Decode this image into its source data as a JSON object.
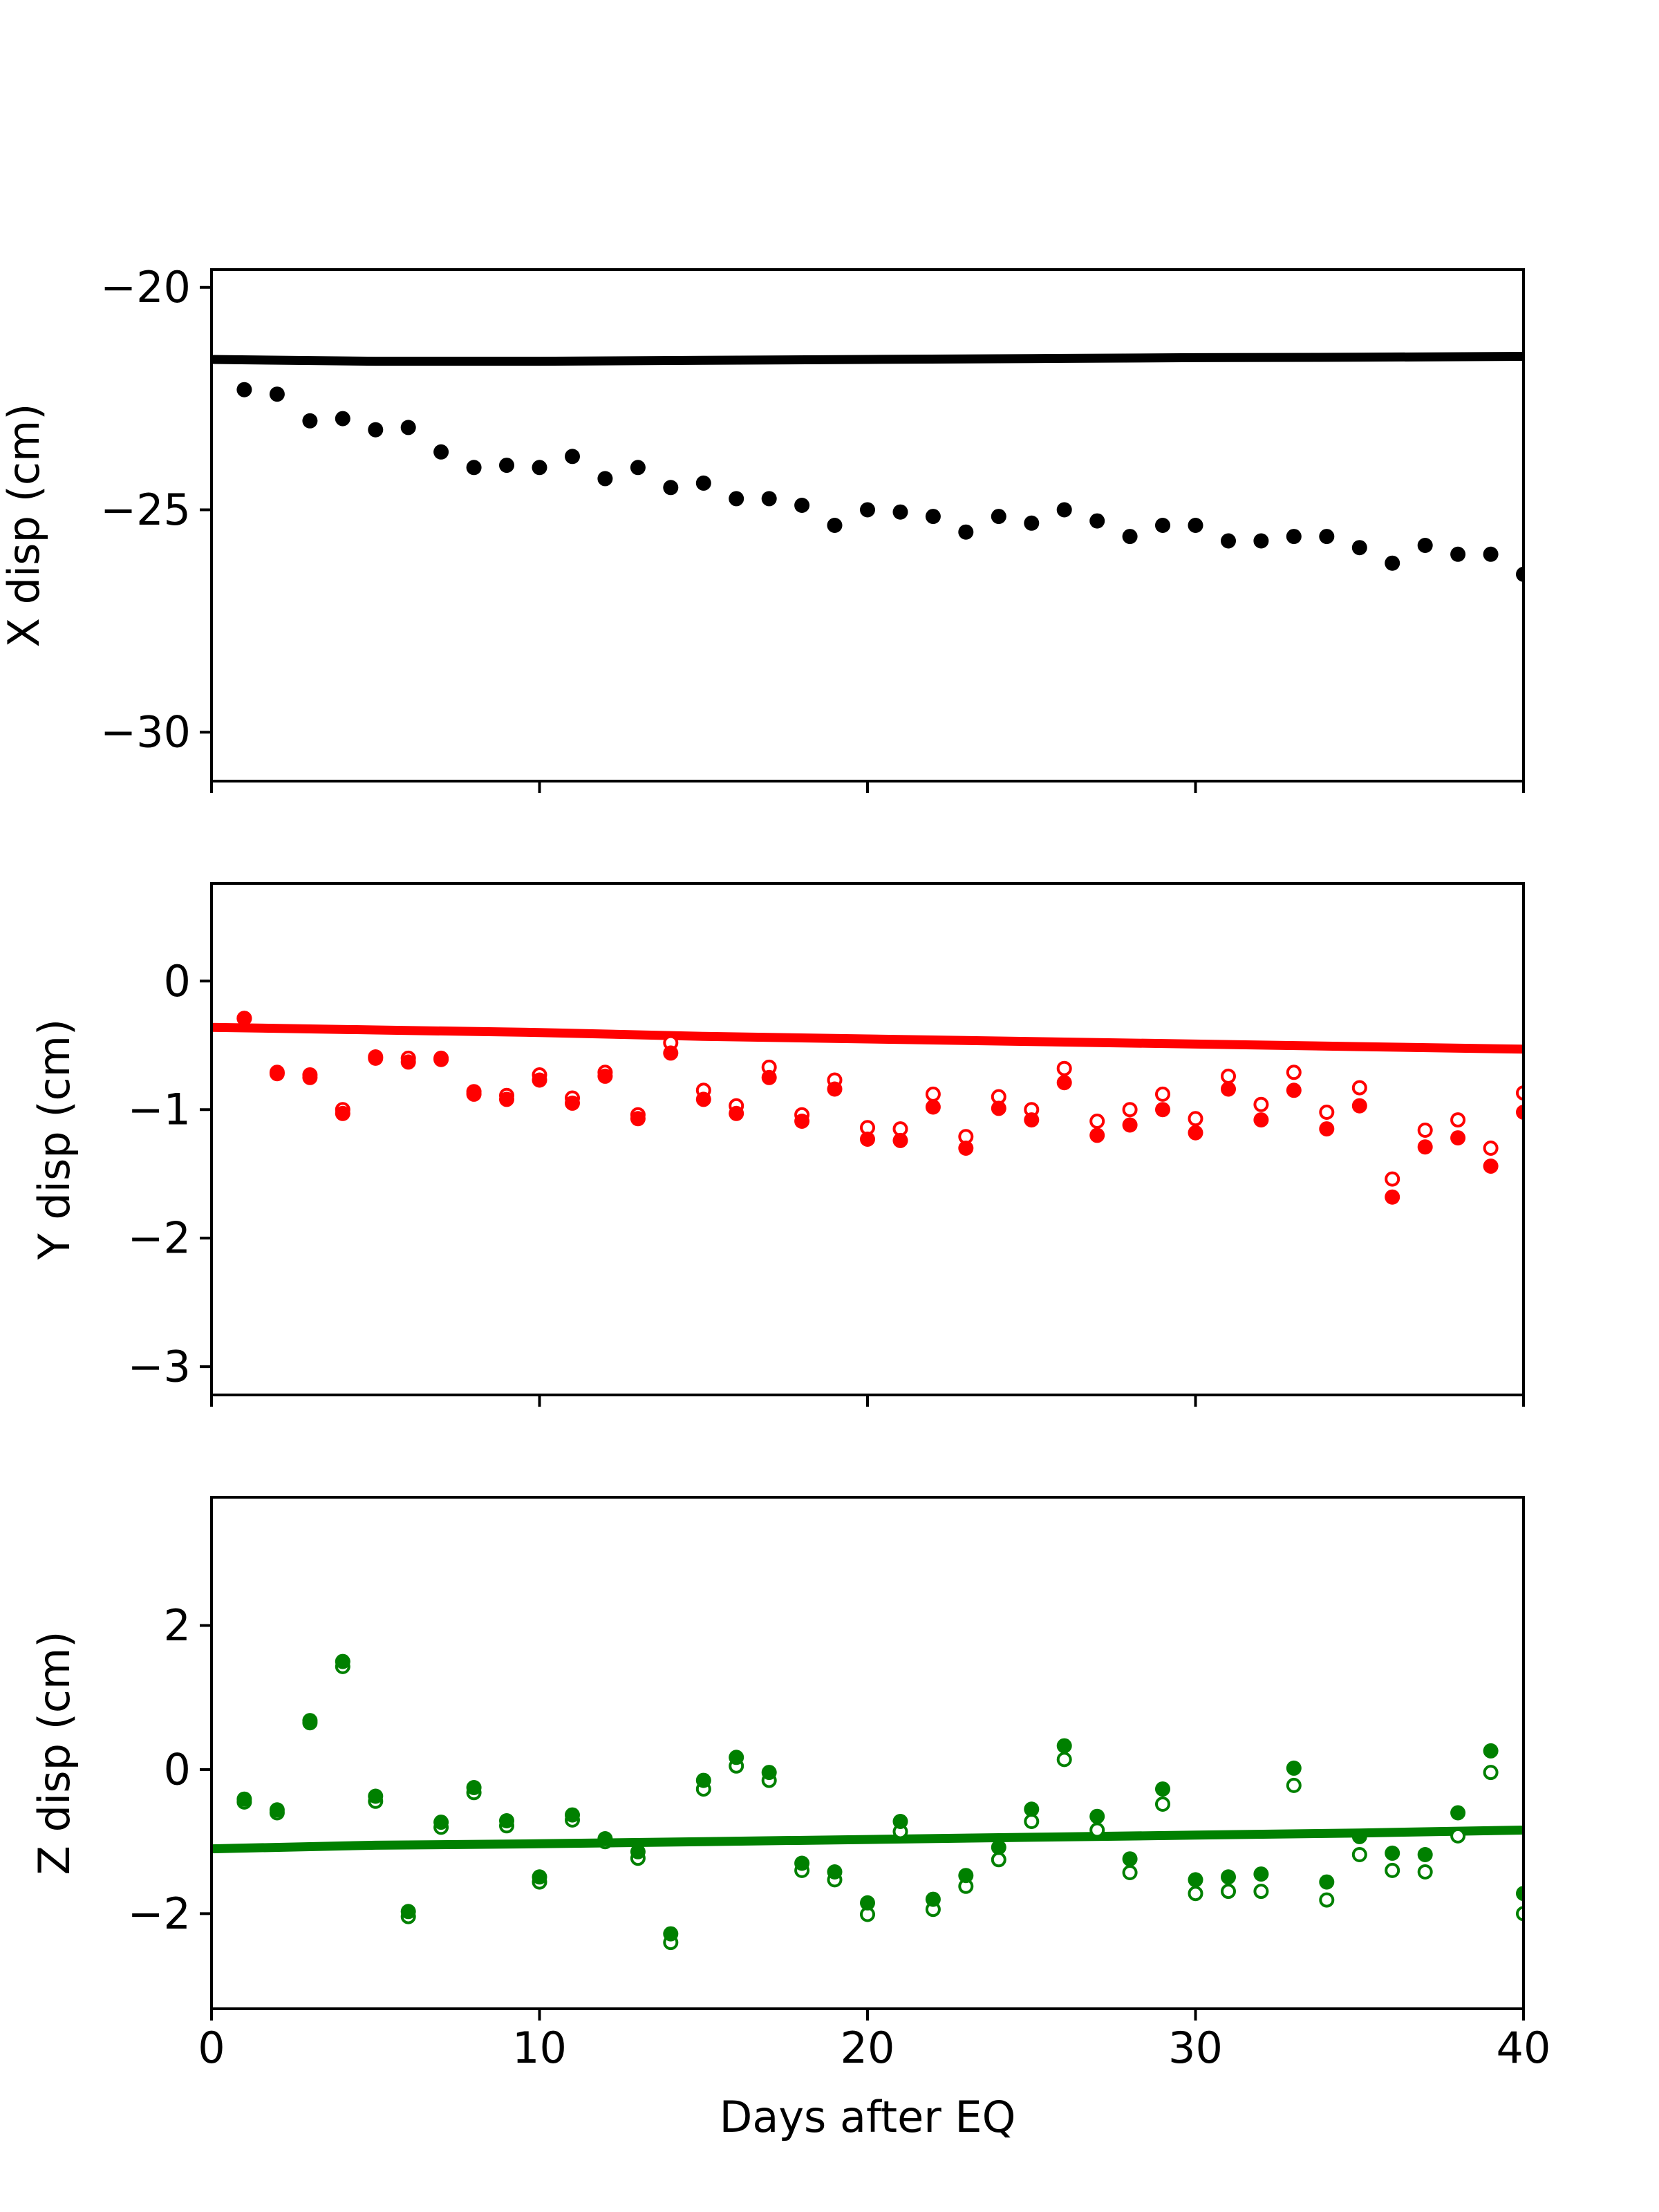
{
  "chart_data": [
    {
      "type": "scatter",
      "ylabel": "X disp (cm)",
      "xlim": [
        0,
        40
      ],
      "ylim": [
        -31.1,
        -19.6
      ],
      "yticks": [
        -20,
        -25,
        -30
      ],
      "ytick_labels": [
        "−20",
        "−25",
        "−30"
      ],
      "color": "#000000",
      "model": {
        "x": [
          0,
          5,
          10,
          15,
          20,
          25,
          30,
          35,
          40
        ],
        "values": [
          -21.62,
          -21.66,
          -21.66,
          -21.64,
          -21.62,
          -21.6,
          -21.58,
          -21.57,
          -21.55
        ]
      },
      "observed_filled": {
        "x": [
          1,
          2,
          3,
          4,
          5,
          6,
          7,
          8,
          9,
          10,
          11,
          12,
          13,
          14,
          15,
          16,
          17,
          18,
          19,
          20,
          21,
          22,
          23,
          24,
          25,
          26,
          27,
          28,
          29,
          30,
          31,
          32,
          33,
          34,
          35,
          36,
          37,
          38,
          39,
          40
        ],
        "values": [
          -22.3,
          -22.4,
          -23.0,
          -22.95,
          -23.2,
          -23.15,
          -23.7,
          -24.05,
          -24.0,
          -24.05,
          -23.8,
          -24.3,
          -24.05,
          -24.5,
          -24.4,
          -24.75,
          -24.75,
          -24.9,
          -25.35,
          -25.0,
          -25.05,
          -25.15,
          -25.5,
          -25.15,
          -25.3,
          -25.0,
          -25.25,
          -25.6,
          -25.35,
          -25.35,
          -25.7,
          -25.7,
          -25.6,
          -25.6,
          -25.85,
          -26.2,
          -25.8,
          -26.0,
          -26.0,
          -26.45
        ]
      },
      "observed_open": null
    },
    {
      "type": "scatter",
      "ylabel": "Y disp (cm)",
      "xlim": [
        0,
        40
      ],
      "ylim": [
        -3.22,
        0.76
      ],
      "yticks": [
        0,
        -1,
        -2,
        -3
      ],
      "ytick_labels": [
        "0",
        "−1",
        "−2",
        "−3"
      ],
      "color": "#ff0000",
      "model": {
        "x": [
          0,
          5,
          10,
          15,
          20,
          25,
          30,
          35,
          40
        ],
        "values": [
          -0.36,
          -0.38,
          -0.4,
          -0.43,
          -0.45,
          -0.47,
          -0.49,
          -0.51,
          -0.53
        ]
      },
      "observed_filled": {
        "x": [
          1,
          2,
          3,
          4,
          5,
          6,
          7,
          8,
          9,
          10,
          11,
          12,
          13,
          14,
          15,
          16,
          17,
          18,
          19,
          20,
          21,
          22,
          23,
          24,
          25,
          26,
          27,
          28,
          29,
          30,
          31,
          32,
          33,
          34,
          35,
          36,
          37,
          38,
          39,
          40
        ],
        "values": [
          -0.29,
          -0.72,
          -0.75,
          -1.03,
          -0.59,
          -0.63,
          -0.61,
          -0.88,
          -0.92,
          -0.77,
          -0.95,
          -0.74,
          -1.07,
          -0.56,
          -0.92,
          -1.03,
          -0.75,
          -1.09,
          -0.84,
          -1.23,
          -1.24,
          -0.98,
          -1.3,
          -0.99,
          -1.08,
          -0.79,
          -1.2,
          -1.12,
          -1.0,
          -1.18,
          -0.84,
          -1.08,
          -0.85,
          -1.15,
          -0.97,
          -1.68,
          -1.29,
          -1.22,
          -1.44,
          -1.02
        ]
      },
      "observed_open": {
        "x": [
          1,
          2,
          3,
          4,
          5,
          6,
          7,
          8,
          9,
          10,
          11,
          12,
          13,
          14,
          15,
          16,
          17,
          18,
          19,
          20,
          21,
          22,
          23,
          24,
          25,
          26,
          27,
          28,
          29,
          30,
          31,
          32,
          33,
          34,
          35,
          36,
          37,
          38,
          39,
          40
        ],
        "values": [
          -0.29,
          -0.71,
          -0.73,
          -1.0,
          -0.6,
          -0.6,
          -0.6,
          -0.86,
          -0.89,
          -0.73,
          -0.91,
          -0.71,
          -1.04,
          -0.48,
          -0.85,
          -0.97,
          -0.67,
          -1.04,
          -0.77,
          -1.14,
          -1.15,
          -0.88,
          -1.21,
          -0.9,
          -1.0,
          -0.68,
          -1.09,
          -1.0,
          -0.88,
          -1.07,
          -0.74,
          -0.96,
          -0.71,
          -1.02,
          -0.83,
          -1.54,
          -1.16,
          -1.08,
          -1.3,
          -0.87
        ]
      }
    },
    {
      "type": "scatter",
      "ylabel": "Z disp (cm)",
      "xlabel": "Days after EQ",
      "xlim": [
        0,
        40
      ],
      "xticks": [
        0,
        10,
        20,
        30,
        40
      ],
      "xtick_labels": [
        "0",
        "10",
        "20",
        "30",
        "40"
      ],
      "ylim": [
        -3.32,
        3.78
      ],
      "yticks": [
        2,
        0,
        -2
      ],
      "ytick_labels": [
        "2",
        "0",
        "−2"
      ],
      "color": "#008000",
      "model": {
        "x": [
          0,
          5,
          10,
          15,
          20,
          25,
          30,
          35,
          40
        ],
        "values": [
          -1.1,
          -1.05,
          -1.03,
          -1.0,
          -0.97,
          -0.94,
          -0.91,
          -0.88,
          -0.84
        ]
      },
      "observed_filled": {
        "x": [
          1,
          2,
          3,
          4,
          5,
          6,
          7,
          8,
          9,
          10,
          11,
          12,
          13,
          14,
          15,
          16,
          17,
          18,
          19,
          20,
          21,
          22,
          23,
          24,
          25,
          26,
          27,
          28,
          29,
          30,
          31,
          32,
          33,
          34,
          35,
          36,
          37,
          38,
          39,
          40
        ],
        "values": [
          -0.41,
          -0.56,
          0.68,
          1.5,
          -0.37,
          -1.97,
          -0.73,
          -0.25,
          -0.71,
          -1.49,
          -0.63,
          -0.96,
          -1.14,
          -2.28,
          -0.15,
          0.17,
          -0.04,
          -1.3,
          -1.42,
          -1.85,
          -0.72,
          -1.8,
          -1.47,
          -1.08,
          -0.55,
          0.33,
          -0.65,
          -1.24,
          -0.27,
          -1.53,
          -1.49,
          -1.45,
          0.02,
          -1.56,
          -0.93,
          -1.16,
          -1.18,
          -0.6,
          0.26,
          -1.72
        ]
      },
      "observed_open": {
        "x": [
          1,
          2,
          3,
          4,
          5,
          6,
          7,
          8,
          9,
          10,
          11,
          12,
          13,
          14,
          15,
          16,
          17,
          18,
          19,
          20,
          21,
          22,
          23,
          24,
          25,
          26,
          27,
          28,
          29,
          30,
          31,
          32,
          33,
          34,
          35,
          36,
          37,
          38,
          39,
          40
        ],
        "values": [
          -0.45,
          -0.6,
          0.65,
          1.43,
          -0.44,
          -2.04,
          -0.8,
          -0.32,
          -0.78,
          -1.56,
          -0.7,
          -1.0,
          -1.23,
          -2.4,
          -0.27,
          0.05,
          -0.15,
          -1.4,
          -1.53,
          -2.01,
          -0.86,
          -1.94,
          -1.62,
          -1.25,
          -0.72,
          0.14,
          -0.84,
          -1.43,
          -0.48,
          -1.72,
          -1.69,
          -1.69,
          -0.22,
          -1.81,
          -1.18,
          -1.4,
          -1.42,
          -0.92,
          -0.04,
          -2.0
        ]
      }
    }
  ]
}
